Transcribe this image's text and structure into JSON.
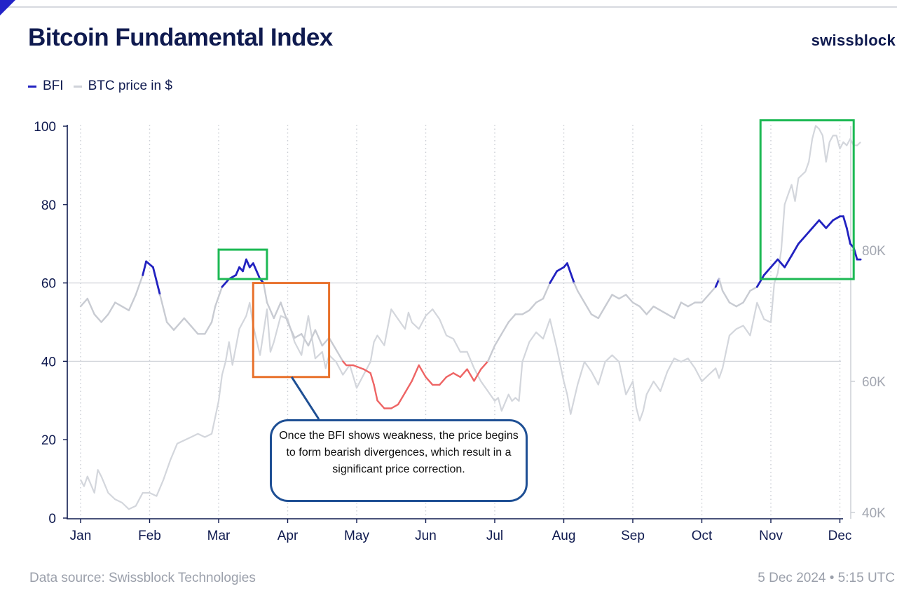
{
  "header": {
    "title": "Bitcoin Fundamental Index",
    "brand": "swissblock"
  },
  "legend": [
    {
      "label": "BFI",
      "color": "#2222c0"
    },
    {
      "label": "BTC price in $",
      "color": "#cfd2d9"
    }
  ],
  "footer": {
    "source": "Data source: Swissblock Technologies",
    "timestamp": "5 Dec 2024 • 5:15 UTC"
  },
  "annotation": {
    "text": "Once the BFI shows weakness, the price begins to form bearish divergences, which result in a significant price correction."
  },
  "colors": {
    "bfi_strong": "#2222c0",
    "bfi_neutral": "#c8cbd2",
    "bfi_weak": "#ee6464",
    "price": "#d3d6dc",
    "highlight_bullish": "#1db954",
    "highlight_bearish": "#e8712b",
    "callout_border": "#1e4f94",
    "axis": "#0f1a4f"
  },
  "chart_data": {
    "type": "line",
    "title": "Bitcoin Fundamental Index",
    "x_unit": "month index (0 = Jan, 11 = Dec, 2024)",
    "categories": [
      "Jan",
      "Feb",
      "Mar",
      "Apr",
      "May",
      "Jun",
      "Jul",
      "Aug",
      "Sep",
      "Oct",
      "Nov",
      "Dec"
    ],
    "y_left": {
      "label": "BFI",
      "ylim": [
        0,
        100
      ],
      "ticks": [
        0,
        20,
        40,
        60,
        80,
        100
      ]
    },
    "y_right": {
      "label": "BTC price in $",
      "ylim": [
        40000,
        100000
      ],
      "ticks": [
        {
          "value": 40000,
          "label": "40K"
        },
        {
          "value": 60000,
          "label": "60K"
        },
        {
          "value": 80000,
          "label": "80K"
        }
      ]
    },
    "thresholds": {
      "strong_above": 60,
      "weak_below": 40
    },
    "series": [
      {
        "name": "BFI",
        "axis": "left",
        "points": [
          [
            0.0,
            54
          ],
          [
            0.1,
            56
          ],
          [
            0.2,
            52
          ],
          [
            0.3,
            50
          ],
          [
            0.4,
            52
          ],
          [
            0.5,
            55
          ],
          [
            0.6,
            54
          ],
          [
            0.7,
            53
          ],
          [
            0.8,
            57
          ],
          [
            0.9,
            62
          ],
          [
            0.95,
            65.5
          ],
          [
            1.05,
            64
          ],
          [
            1.15,
            57
          ],
          [
            1.25,
            50
          ],
          [
            1.35,
            48
          ],
          [
            1.5,
            51
          ],
          [
            1.6,
            49
          ],
          [
            1.7,
            47
          ],
          [
            1.8,
            47
          ],
          [
            1.9,
            50
          ],
          [
            1.95,
            54
          ],
          [
            2.05,
            59
          ],
          [
            2.15,
            61
          ],
          [
            2.25,
            62
          ],
          [
            2.3,
            64
          ],
          [
            2.35,
            63
          ],
          [
            2.4,
            66
          ],
          [
            2.45,
            64
          ],
          [
            2.5,
            65
          ],
          [
            2.55,
            63
          ],
          [
            2.6,
            61
          ],
          [
            2.65,
            60
          ],
          [
            2.7,
            55
          ],
          [
            2.8,
            51
          ],
          [
            2.9,
            55
          ],
          [
            3.0,
            50
          ],
          [
            3.1,
            46
          ],
          [
            3.2,
            47
          ],
          [
            3.3,
            44
          ],
          [
            3.4,
            48
          ],
          [
            3.5,
            44
          ],
          [
            3.6,
            46
          ],
          [
            3.7,
            43
          ],
          [
            3.8,
            40
          ],
          [
            3.85,
            39
          ],
          [
            3.95,
            39
          ],
          [
            4.1,
            38
          ],
          [
            4.2,
            37
          ],
          [
            4.25,
            34
          ],
          [
            4.3,
            30
          ],
          [
            4.4,
            28
          ],
          [
            4.5,
            28
          ],
          [
            4.6,
            29
          ],
          [
            4.7,
            32
          ],
          [
            4.8,
            35
          ],
          [
            4.9,
            39
          ],
          [
            5.0,
            36
          ],
          [
            5.1,
            34
          ],
          [
            5.2,
            34
          ],
          [
            5.3,
            36
          ],
          [
            5.4,
            37
          ],
          [
            5.5,
            36
          ],
          [
            5.6,
            38
          ],
          [
            5.7,
            35
          ],
          [
            5.8,
            38
          ],
          [
            5.9,
            40
          ],
          [
            6.0,
            44
          ],
          [
            6.1,
            47
          ],
          [
            6.2,
            50
          ],
          [
            6.3,
            52
          ],
          [
            6.4,
            52
          ],
          [
            6.5,
            53
          ],
          [
            6.6,
            55
          ],
          [
            6.7,
            56
          ],
          [
            6.8,
            60
          ],
          [
            6.9,
            63
          ],
          [
            7.0,
            64
          ],
          [
            7.05,
            65
          ],
          [
            7.15,
            60
          ],
          [
            7.2,
            58
          ],
          [
            7.3,
            55
          ],
          [
            7.4,
            52
          ],
          [
            7.5,
            51
          ],
          [
            7.6,
            54
          ],
          [
            7.7,
            57
          ],
          [
            7.8,
            56
          ],
          [
            7.9,
            57
          ],
          [
            8.0,
            55
          ],
          [
            8.1,
            54
          ],
          [
            8.2,
            52
          ],
          [
            8.3,
            54
          ],
          [
            8.4,
            53
          ],
          [
            8.5,
            52
          ],
          [
            8.6,
            51
          ],
          [
            8.7,
            55
          ],
          [
            8.8,
            54
          ],
          [
            8.9,
            55
          ],
          [
            9.0,
            55
          ],
          [
            9.1,
            57
          ],
          [
            9.2,
            59
          ],
          [
            9.25,
            61
          ],
          [
            9.3,
            58
          ],
          [
            9.4,
            55
          ],
          [
            9.5,
            54
          ],
          [
            9.6,
            55
          ],
          [
            9.7,
            58
          ],
          [
            9.8,
            59
          ],
          [
            9.9,
            62
          ],
          [
            10.0,
            64
          ],
          [
            10.1,
            66
          ],
          [
            10.2,
            64
          ],
          [
            10.3,
            67
          ],
          [
            10.4,
            70
          ],
          [
            10.5,
            72
          ],
          [
            10.6,
            74
          ],
          [
            10.7,
            76
          ],
          [
            10.8,
            74
          ],
          [
            10.9,
            76
          ],
          [
            11.0,
            77
          ],
          [
            11.05,
            77
          ],
          [
            11.1,
            74
          ],
          [
            11.15,
            70
          ],
          [
            11.2,
            69
          ],
          [
            11.25,
            66
          ],
          [
            11.3,
            66
          ]
        ]
      },
      {
        "name": "BTC price in $",
        "axis": "right",
        "points": [
          [
            0.0,
            45000
          ],
          [
            0.05,
            44000
          ],
          [
            0.1,
            45500
          ],
          [
            0.2,
            43000
          ],
          [
            0.25,
            46500
          ],
          [
            0.3,
            45500
          ],
          [
            0.4,
            43000
          ],
          [
            0.5,
            42000
          ],
          [
            0.6,
            41500
          ],
          [
            0.7,
            40500
          ],
          [
            0.8,
            41000
          ],
          [
            0.85,
            42000
          ],
          [
            0.9,
            43000
          ],
          [
            1.0,
            43000
          ],
          [
            1.1,
            42500
          ],
          [
            1.2,
            45000
          ],
          [
            1.3,
            48000
          ],
          [
            1.4,
            50500
          ],
          [
            1.5,
            51000
          ],
          [
            1.6,
            51500
          ],
          [
            1.7,
            52000
          ],
          [
            1.8,
            51500
          ],
          [
            1.9,
            52000
          ],
          [
            2.0,
            57000
          ],
          [
            2.05,
            61000
          ],
          [
            2.1,
            63000
          ],
          [
            2.15,
            66000
          ],
          [
            2.2,
            62500
          ],
          [
            2.3,
            68000
          ],
          [
            2.4,
            70000
          ],
          [
            2.45,
            72000
          ],
          [
            2.5,
            68500
          ],
          [
            2.6,
            64000
          ],
          [
            2.7,
            71000
          ],
          [
            2.75,
            64500
          ],
          [
            2.8,
            66000
          ],
          [
            2.9,
            70000
          ],
          [
            3.0,
            69500
          ],
          [
            3.1,
            66000
          ],
          [
            3.2,
            64000
          ],
          [
            3.3,
            70000
          ],
          [
            3.4,
            63500
          ],
          [
            3.5,
            64500
          ],
          [
            3.55,
            62000
          ],
          [
            3.6,
            64000
          ],
          [
            3.7,
            63000
          ],
          [
            3.8,
            61000
          ],
          [
            3.9,
            62500
          ],
          [
            4.0,
            59000
          ],
          [
            4.1,
            61000
          ],
          [
            4.2,
            63000
          ],
          [
            4.25,
            66000
          ],
          [
            4.3,
            67000
          ],
          [
            4.4,
            65500
          ],
          [
            4.5,
            71000
          ],
          [
            4.6,
            69500
          ],
          [
            4.7,
            68000
          ],
          [
            4.75,
            70500
          ],
          [
            4.8,
            69000
          ],
          [
            4.9,
            68000
          ],
          [
            5.0,
            70000
          ],
          [
            5.1,
            71000
          ],
          [
            5.2,
            69500
          ],
          [
            5.3,
            67000
          ],
          [
            5.4,
            66500
          ],
          [
            5.5,
            64500
          ],
          [
            5.6,
            64500
          ],
          [
            5.7,
            62000
          ],
          [
            5.8,
            60000
          ],
          [
            5.9,
            58500
          ],
          [
            6.0,
            57000
          ],
          [
            6.05,
            57500
          ],
          [
            6.1,
            55500
          ],
          [
            6.2,
            58000
          ],
          [
            6.25,
            57000
          ],
          [
            6.3,
            57500
          ],
          [
            6.35,
            57000
          ],
          [
            6.4,
            63000
          ],
          [
            6.5,
            66000
          ],
          [
            6.6,
            67500
          ],
          [
            6.7,
            66500
          ],
          [
            6.8,
            69500
          ],
          [
            6.9,
            65000
          ],
          [
            7.0,
            60000
          ],
          [
            7.05,
            58000
          ],
          [
            7.1,
            55000
          ],
          [
            7.2,
            59500
          ],
          [
            7.3,
            63000
          ],
          [
            7.4,
            61500
          ],
          [
            7.5,
            59500
          ],
          [
            7.6,
            63000
          ],
          [
            7.7,
            64000
          ],
          [
            7.8,
            63000
          ],
          [
            7.9,
            58000
          ],
          [
            8.0,
            60000
          ],
          [
            8.05,
            56000
          ],
          [
            8.1,
            54000
          ],
          [
            8.15,
            55500
          ],
          [
            8.2,
            58000
          ],
          [
            8.3,
            60000
          ],
          [
            8.4,
            58500
          ],
          [
            8.5,
            61500
          ],
          [
            8.6,
            63500
          ],
          [
            8.7,
            63000
          ],
          [
            8.8,
            63500
          ],
          [
            8.9,
            62000
          ],
          [
            9.0,
            60000
          ],
          [
            9.1,
            61000
          ],
          [
            9.2,
            62000
          ],
          [
            9.25,
            60500
          ],
          [
            9.3,
            62000
          ],
          [
            9.4,
            67000
          ],
          [
            9.5,
            68000
          ],
          [
            9.6,
            68500
          ],
          [
            9.7,
            67000
          ],
          [
            9.8,
            72000
          ],
          [
            9.9,
            69500
          ],
          [
            10.0,
            69000
          ],
          [
            10.05,
            75000
          ],
          [
            10.1,
            76500
          ],
          [
            10.15,
            80000
          ],
          [
            10.2,
            87000
          ],
          [
            10.25,
            88500
          ],
          [
            10.3,
            90000
          ],
          [
            10.35,
            87500
          ],
          [
            10.4,
            91000
          ],
          [
            10.5,
            92000
          ],
          [
            10.55,
            93500
          ],
          [
            10.6,
            97000
          ],
          [
            10.65,
            99000
          ],
          [
            10.7,
            98500
          ],
          [
            10.75,
            97500
          ],
          [
            10.8,
            93500
          ],
          [
            10.85,
            96500
          ],
          [
            10.9,
            97500
          ],
          [
            10.95,
            97500
          ],
          [
            11.0,
            95500
          ],
          [
            11.05,
            96500
          ],
          [
            11.1,
            96000
          ],
          [
            11.15,
            97000
          ],
          [
            11.2,
            96000
          ],
          [
            11.25,
            96000
          ],
          [
            11.3,
            96500
          ]
        ]
      }
    ],
    "highlights": [
      {
        "type": "bullish",
        "color": "green",
        "x_range": [
          2.0,
          2.7
        ],
        "y_range": [
          61,
          68.5
        ]
      },
      {
        "type": "bearish",
        "color": "orange",
        "x_range": [
          2.5,
          3.6
        ],
        "y_range": [
          36,
          60
        ]
      },
      {
        "type": "bullish",
        "color": "green",
        "x_range": [
          9.85,
          11.2
        ],
        "y_range": [
          61,
          101.5
        ]
      }
    ]
  }
}
